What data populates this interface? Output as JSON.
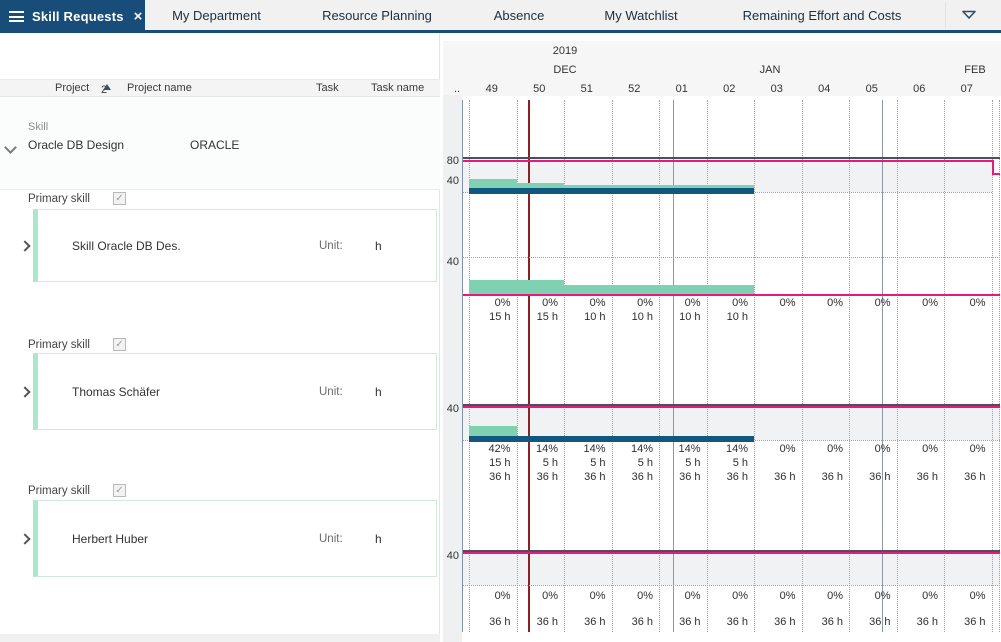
{
  "tabbar": {
    "active_tab": {
      "label": "Skill Requests"
    },
    "tabs": [
      {
        "label": "My Department"
      },
      {
        "label": "Resource Planning"
      },
      {
        "label": "Absence"
      },
      {
        "label": "My Watchlist"
      },
      {
        "label": "Remaining Effort and Costs"
      }
    ]
  },
  "left_panel": {
    "columns": {
      "project": "Project",
      "sort_number": "2",
      "project_name": "Project name",
      "task": "Task",
      "task_name": "Task name"
    },
    "skill_group": {
      "type_label": "Skill",
      "name": "Oracle DB Design",
      "code": "ORACLE"
    },
    "rows": [
      {
        "section_label": "Primary skill",
        "name": "Skill Oracle DB Des.",
        "unit_label": "Unit:",
        "unit": "h"
      },
      {
        "section_label": "Primary skill",
        "name": "Thomas Schäfer",
        "unit_label": "Unit:",
        "unit": "h"
      },
      {
        "section_label": "Primary skill",
        "name": "Herbert Huber",
        "unit_label": "Unit:",
        "unit": "h"
      }
    ]
  },
  "chart_data": {
    "type": "gantt-histogram",
    "timeline": {
      "year": "2019",
      "months": [
        "DEC",
        "JAN",
        "FEB"
      ],
      "weeks": [
        "49",
        "50",
        "51",
        "52",
        "01",
        "02",
        "03",
        "04",
        "05",
        "06",
        "07"
      ],
      "truncated_week_label": ".."
    },
    "colors": {
      "demand_bar_green": "#7fd1b1",
      "booking_bar_navy": "#10587f",
      "capacity_line_pink": "#e6197e",
      "capacity_line_dark": "#4a5158",
      "today_line_red": "#8c2025"
    },
    "rows": [
      {
        "name": "Skill Oracle DB Design",
        "y_axis_labels": [
          "80",
          "40"
        ],
        "capacity_hours_per_week": 80,
        "demand_bars": [
          {
            "week": "49",
            "hours": 30
          },
          {
            "week": "50",
            "hours": 20
          },
          {
            "week": "51",
            "hours": 15
          },
          {
            "week": "52",
            "hours": 15
          },
          {
            "week": "01",
            "hours": 15
          },
          {
            "week": "02",
            "hours": 15
          }
        ],
        "booking_bar_weeks": [
          "49",
          "02"
        ]
      },
      {
        "name": "Skill Oracle DB Des.",
        "y_axis_labels": [
          "40"
        ],
        "capacity_hours_per_week": 0,
        "demand_bars": [
          {
            "week": "49",
            "hours": 15
          },
          {
            "week": "50",
            "hours": 15
          },
          {
            "week": "51",
            "hours": 10
          },
          {
            "week": "52",
            "hours": 10
          },
          {
            "week": "01",
            "hours": 10
          },
          {
            "week": "02",
            "hours": 10
          }
        ],
        "utilization_pct": [
          "0%",
          "0%",
          "0%",
          "0%",
          "0%",
          "0%",
          "0%",
          "0%",
          "0%",
          "0%",
          "0%"
        ],
        "requested_hours": [
          "15 h",
          "15 h",
          "10 h",
          "10 h",
          "10 h",
          "10 h"
        ]
      },
      {
        "name": "Thomas Schäfer",
        "y_axis_labels": [
          "40"
        ],
        "capacity_hours_per_week": 40,
        "demand_bars": [
          {
            "week": "49",
            "hours": 15
          }
        ],
        "booking_bar_weeks": [
          "49",
          "02"
        ],
        "utilization_pct": [
          "42%",
          "14%",
          "14%",
          "14%",
          "14%",
          "14%",
          "0%",
          "0%",
          "0%",
          "0%",
          "0%"
        ],
        "requested_hours": [
          "15 h",
          "5 h",
          "5 h",
          "5 h",
          "5 h",
          "5 h"
        ],
        "capacity_hours": [
          "36 h",
          "36 h",
          "36 h",
          "36 h",
          "36 h",
          "36 h",
          "36 h",
          "36 h",
          "36 h",
          "36 h",
          "36 h"
        ]
      },
      {
        "name": "Herbert Huber",
        "y_axis_labels": [
          "40"
        ],
        "capacity_hours_per_week": 40,
        "utilization_pct": [
          "0%",
          "0%",
          "0%",
          "0%",
          "0%",
          "0%",
          "0%",
          "0%",
          "0%",
          "0%",
          "0%"
        ],
        "capacity_hours": [
          "36 h",
          "36 h",
          "36 h",
          "36 h",
          "36 h",
          "36 h",
          "36 h",
          "36 h",
          "36 h",
          "36 h",
          "36 h"
        ]
      }
    ]
  }
}
